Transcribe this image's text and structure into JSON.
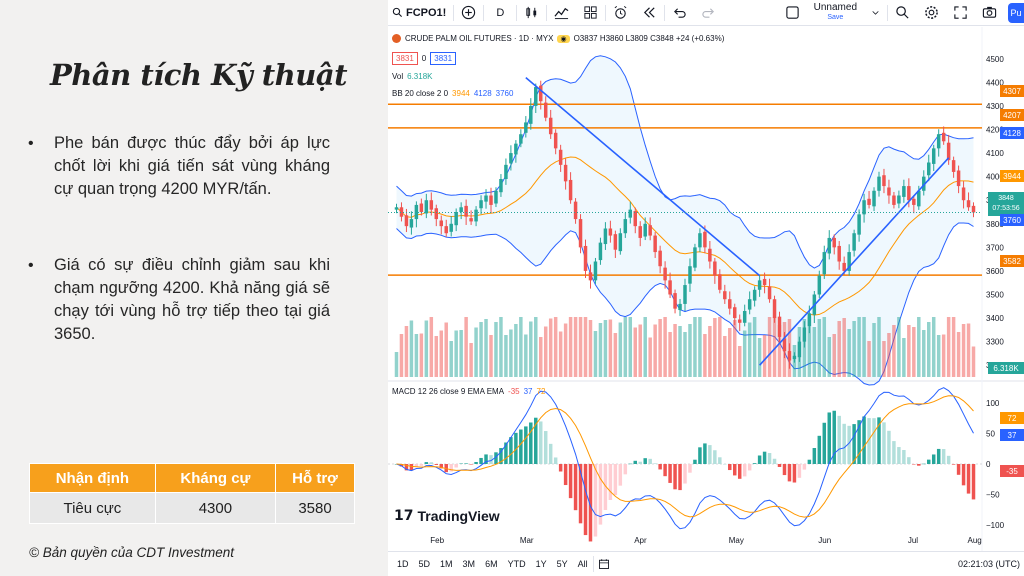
{
  "slide": {
    "title": "Phân tích Kỹ thuật",
    "bullets": [
      "Phe bán được thúc đẩy bởi áp lực chốt lời khi giá tiến sát vùng kháng cự quan trọng 4200 MYR/tấn.",
      "Giá có sự điều chỉnh giảm sau khi chạm ngưỡng 4200. Khả năng giá sẽ chạy tới vùng hỗ trợ tiếp theo tại giá 3650."
    ],
    "table": {
      "headers": [
        "Nhận định",
        "Kháng cự",
        "Hỗ trợ"
      ],
      "row": [
        "Tiêu cực",
        "4300",
        "3580"
      ]
    },
    "copyright": "© Bản quyền của CDT Investment"
  },
  "toolbar": {
    "symbol": "FCPO1!",
    "interval": "D",
    "layout_name": "Unnamed",
    "save_label": "Save",
    "publish_label": "Pu"
  },
  "legend": {
    "title": "CRUDE PALM OIL FUTURES · 1D · MYX",
    "ohlc": "O3837 H3860 L3809 C3848 +24 (+0.63%)",
    "bid": "3831",
    "spread": "0",
    "ask": "3831",
    "vol_label": "Vol",
    "vol_value": "6.318K",
    "bb_label": "BB 20 close 2 0",
    "bb_values": [
      "3944",
      "4128",
      "3760"
    ],
    "macd_label": "MACD 12 26 close 9 EMA EMA",
    "macd_values": [
      "-35",
      "37",
      "72"
    ]
  },
  "price_axis": [
    "4500",
    "4400",
    "4300",
    "4200",
    "4100",
    "4000",
    "3900",
    "3800",
    "3700",
    "3600",
    "3500",
    "3400",
    "3300",
    "3200"
  ],
  "macd_axis": [
    "100",
    "50",
    "0",
    "−50",
    "−100"
  ],
  "month_labels": [
    "Feb",
    "Mar",
    "Apr",
    "May",
    "Jun",
    "Jul",
    "Aug"
  ],
  "price_tags": {
    "r1": "4307",
    "r2": "4207",
    "bb_upper": "4128",
    "bb_mid": "3944",
    "last": "3848",
    "countdown": "07:53:56",
    "bb_lower": "3760",
    "support": "3582",
    "volume": "6.318K",
    "macd_signal": "72",
    "macd_line": "37",
    "macd_hist": "-35"
  },
  "watermark": "TradingView",
  "bottom_bar": {
    "ranges": [
      "1D",
      "5D",
      "1M",
      "3M",
      "6M",
      "YTD",
      "1Y",
      "5Y",
      "All"
    ],
    "time": "02:21:03 (UTC)"
  },
  "colors": {
    "up": "#26a69a",
    "down": "#ef5350",
    "level": "#f57c00",
    "trend": "#2962ff",
    "bb": "#2962ff",
    "bb_basis": "#ff9800"
  },
  "chart_data": {
    "type": "candlestick",
    "symbol": "FCPO1!",
    "interval": "1D",
    "ylim": [
      3150,
      4550
    ],
    "horizontal_levels": [
      4307,
      4207,
      3582
    ],
    "trendlines": [
      {
        "from": [
          "early Mar",
          4420
        ],
        "to": [
          "late May",
          3580
        ]
      },
      {
        "from": [
          "late May",
          3200
        ],
        "to": [
          "late Jul",
          4080
        ]
      }
    ],
    "closes": [
      3870,
      3830,
      3790,
      3820,
      3880,
      3850,
      3900,
      3860,
      3820,
      3790,
      3760,
      3800,
      3850,
      3870,
      3830,
      3810,
      3860,
      3900,
      3920,
      3880,
      3940,
      3990,
      4050,
      4100,
      4140,
      4180,
      4230,
      4300,
      4380,
      4320,
      4250,
      4180,
      4120,
      4050,
      3980,
      3900,
      3820,
      3700,
      3600,
      3560,
      3640,
      3720,
      3780,
      3750,
      3690,
      3760,
      3820,
      3860,
      3790,
      3740,
      3800,
      3750,
      3680,
      3620,
      3560,
      3500,
      3440,
      3460,
      3540,
      3620,
      3700,
      3760,
      3700,
      3640,
      3580,
      3520,
      3480,
      3440,
      3400,
      3380,
      3430,
      3480,
      3520,
      3560,
      3540,
      3480,
      3400,
      3320,
      3260,
      3220,
      3240,
      3300,
      3360,
      3420,
      3500,
      3580,
      3680,
      3740,
      3700,
      3640,
      3600,
      3680,
      3760,
      3840,
      3900,
      3880,
      3940,
      4000,
      3960,
      3920,
      3880,
      3920,
      3960,
      3900,
      3880,
      3940,
      4000,
      4060,
      4120,
      4180,
      4150,
      4070,
      4020,
      3960,
      3900,
      3870,
      3848
    ]
  }
}
